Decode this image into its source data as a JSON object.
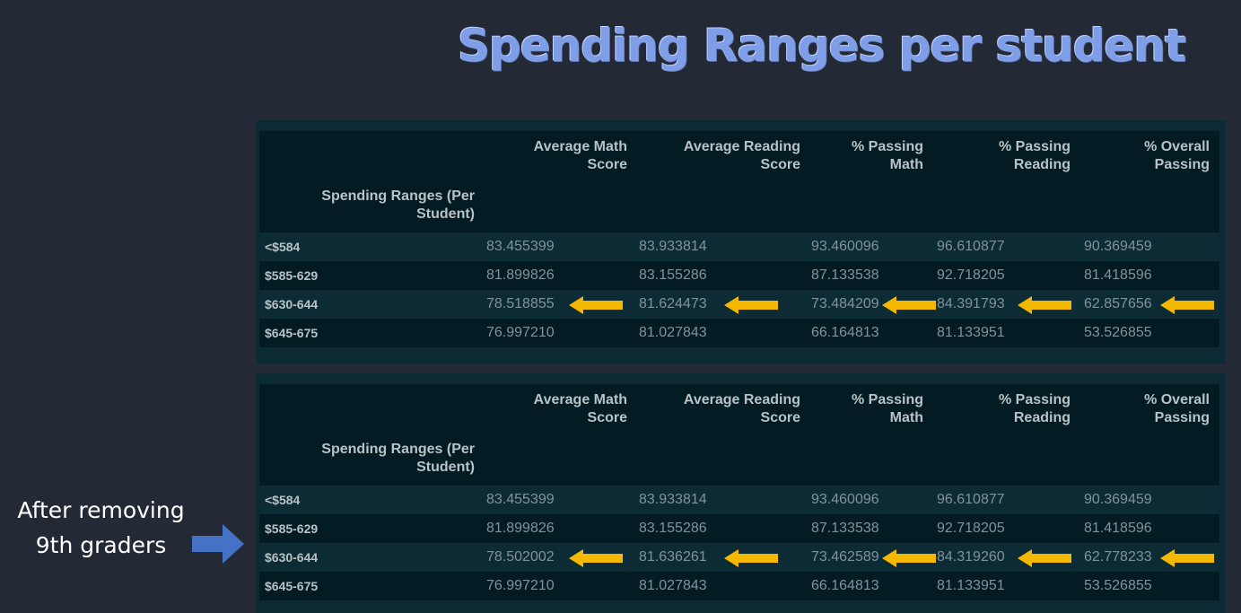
{
  "title": "Spending Ranges per student",
  "note": {
    "line1": "After removing",
    "line2": "9th graders"
  },
  "colors": {
    "accent_arrow": "#f5b800",
    "note_arrow": "#4472c4",
    "title": "#7f9ee8"
  },
  "icons": {
    "row_marker": "arrow-left-icon",
    "note_marker": "arrow-right-icon"
  },
  "tables": [
    {
      "headers": [
        "Average Math Score",
        "Average Reading Score",
        "% Passing Math",
        "% Passing Reading",
        "% Overall Passing"
      ],
      "header_lines": [
        [
          "Average Math",
          "Score"
        ],
        [
          "Average Reading",
          "Score"
        ],
        [
          "% Passing",
          "Math"
        ],
        [
          "% Passing",
          "Reading"
        ],
        [
          "% Overall",
          "Passing"
        ]
      ],
      "index_header": [
        "Spending Ranges (Per",
        "Student)"
      ],
      "rows": [
        {
          "label": "<$584",
          "values": [
            "83.455399",
            "83.933814",
            "93.460096",
            "96.610877",
            "90.369459"
          ]
        },
        {
          "label": "$585-629",
          "values": [
            "81.899826",
            "83.155286",
            "87.133538",
            "92.718205",
            "81.418596"
          ]
        },
        {
          "label": "$630-644",
          "values": [
            "78.518855",
            "81.624473",
            "73.484209",
            "84.391793",
            "62.857656"
          ],
          "highlighted": true
        },
        {
          "label": "$645-675",
          "values": [
            "76.997210",
            "81.027843",
            "66.164813",
            "81.133951",
            "53.526855"
          ]
        }
      ]
    },
    {
      "headers": [
        "Average Math Score",
        "Average Reading Score",
        "% Passing Math",
        "% Passing Reading",
        "% Overall Passing"
      ],
      "header_lines": [
        [
          "Average Math",
          "Score"
        ],
        [
          "Average Reading",
          "Score"
        ],
        [
          "% Passing",
          "Math"
        ],
        [
          "% Passing",
          "Reading"
        ],
        [
          "% Overall",
          "Passing"
        ]
      ],
      "index_header": [
        "Spending Ranges (Per",
        "Student)"
      ],
      "rows": [
        {
          "label": "<$584",
          "values": [
            "83.455399",
            "83.933814",
            "93.460096",
            "96.610877",
            "90.369459"
          ]
        },
        {
          "label": "$585-629",
          "values": [
            "81.899826",
            "83.155286",
            "87.133538",
            "92.718205",
            "81.418596"
          ]
        },
        {
          "label": "$630-644",
          "values": [
            "78.502002",
            "81.636261",
            "73.462589",
            "84.319260",
            "62.778233"
          ],
          "highlighted": true
        },
        {
          "label": "$645-675",
          "values": [
            "76.997210",
            "81.027843",
            "66.164813",
            "81.133951",
            "53.526855"
          ]
        }
      ]
    }
  ]
}
